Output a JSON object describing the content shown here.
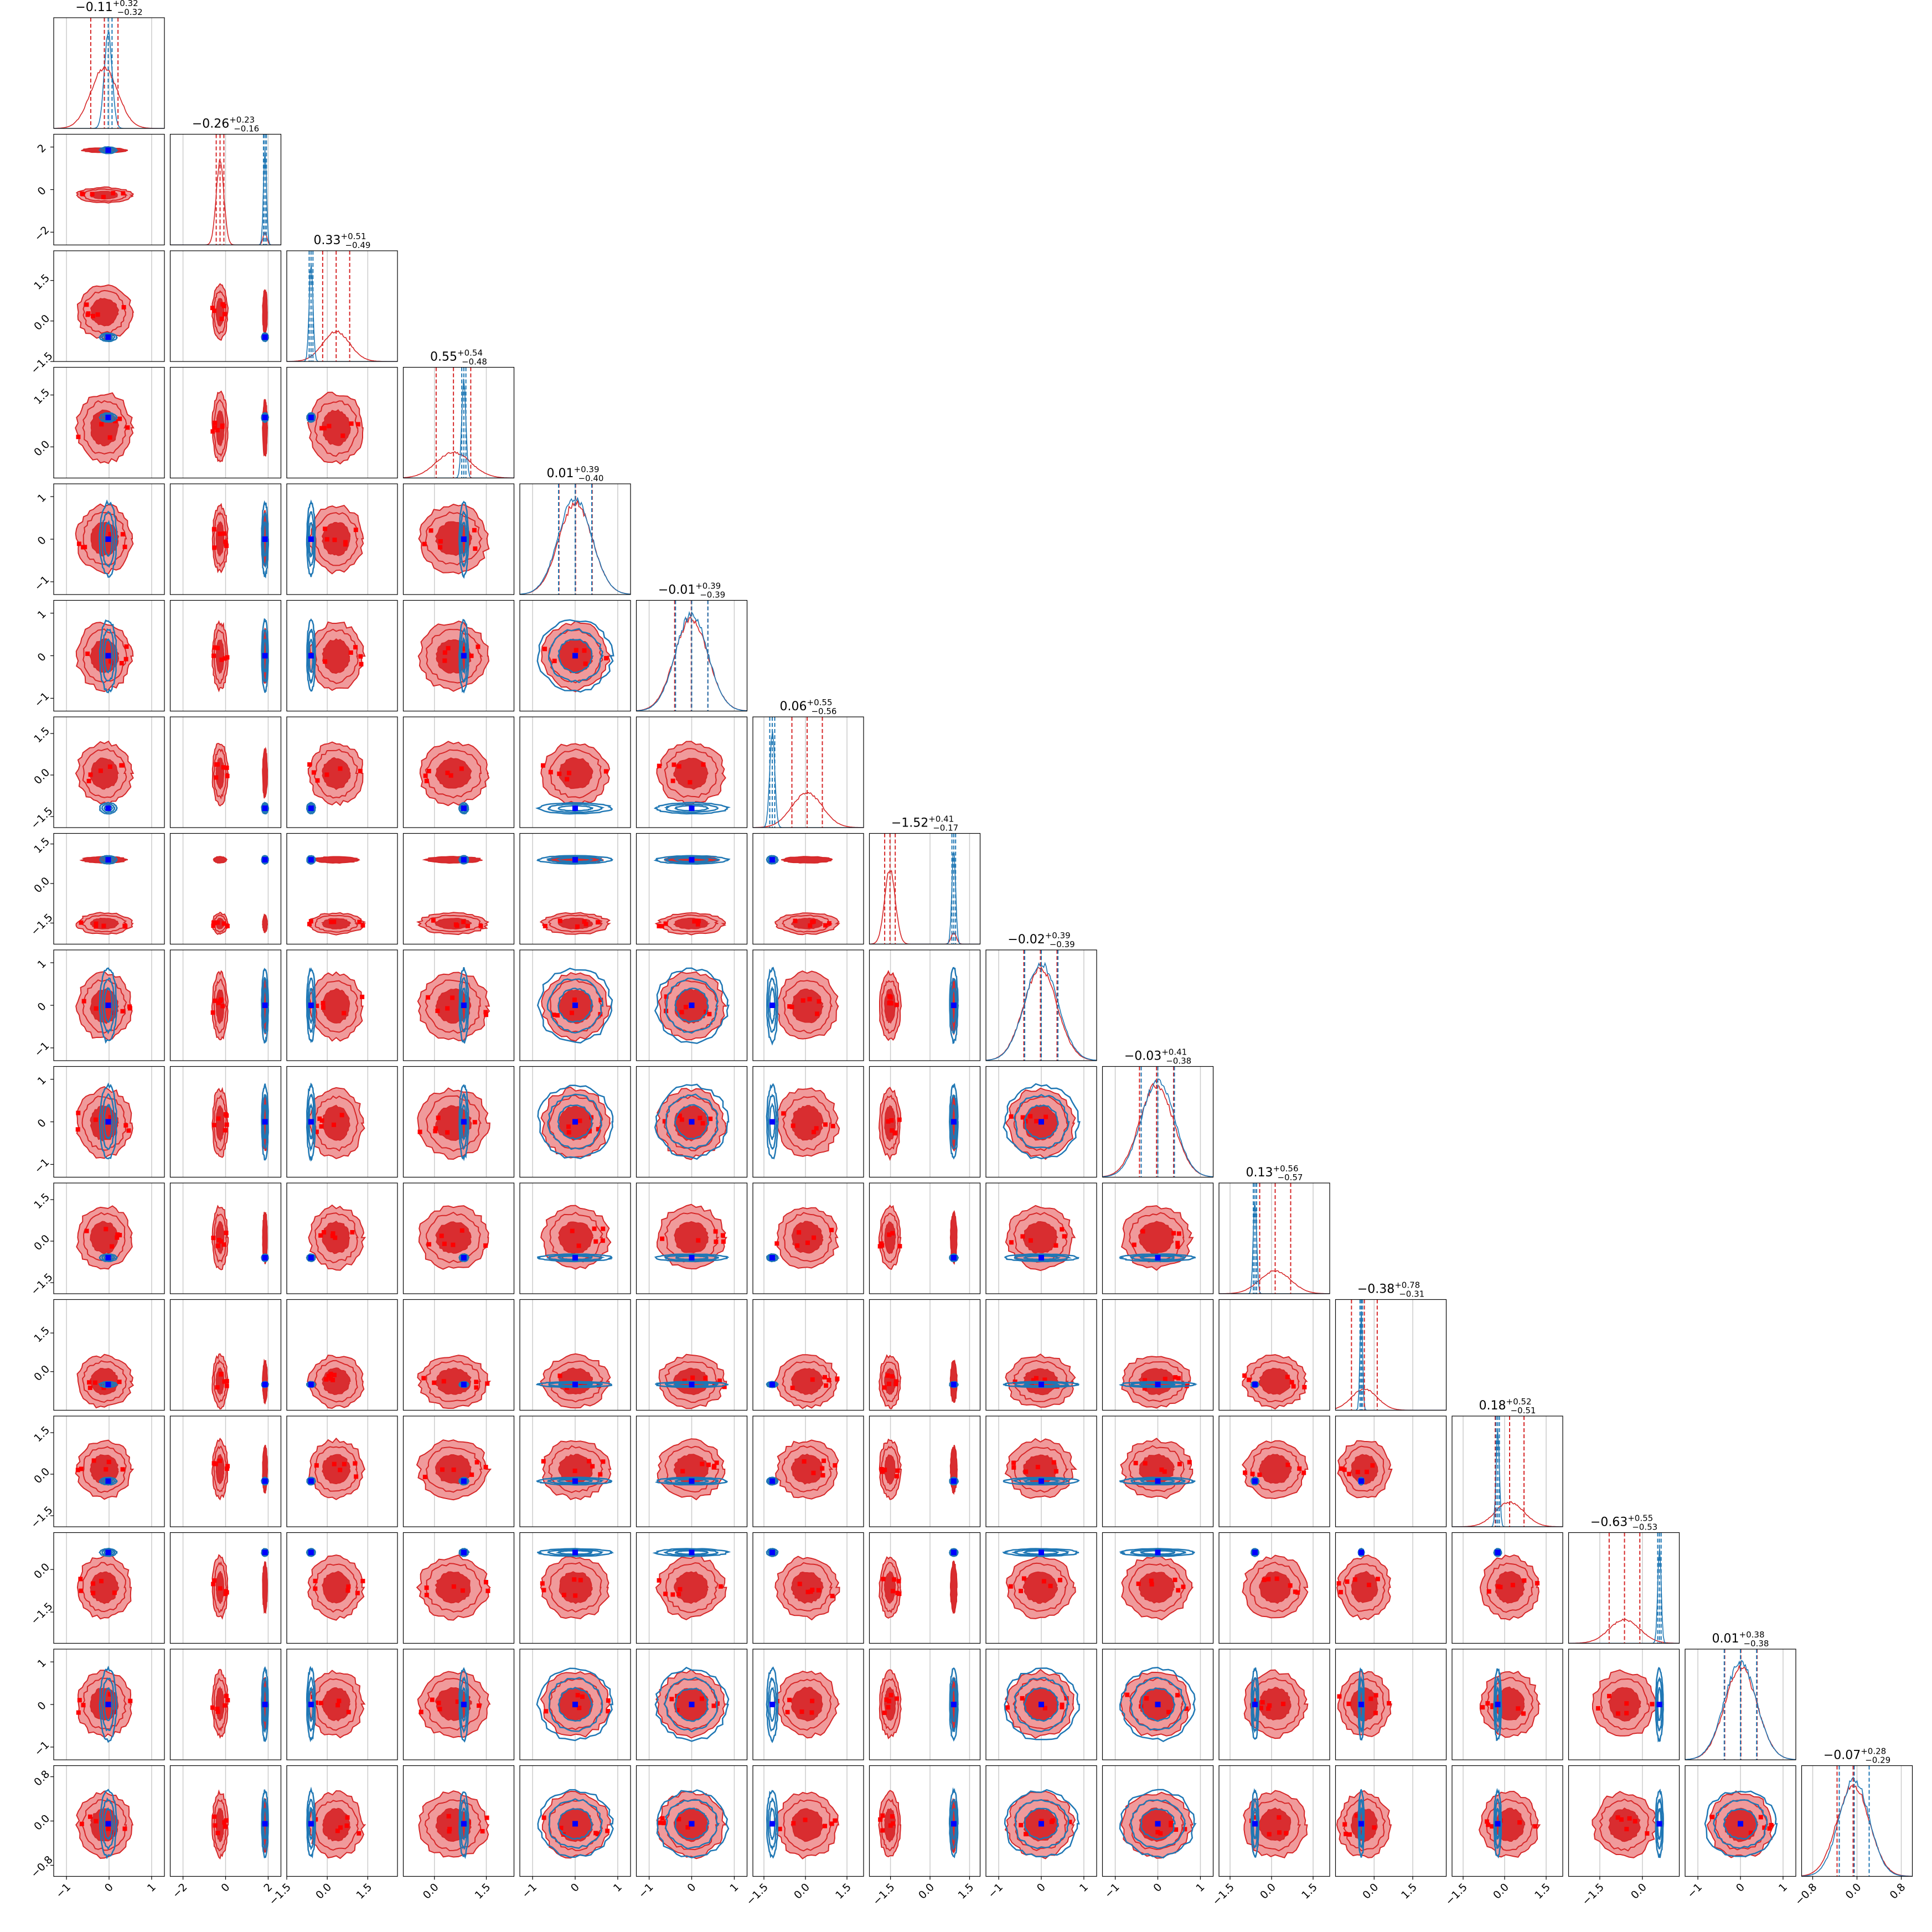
{
  "chart_data": {
    "type": "corner",
    "n_params": 16,
    "colors": {
      "red": "#d62728",
      "red_light": "#f09a9b",
      "red_dark": "#d92d30",
      "blue": "#1f77b4",
      "truth_marker": "#0000ff",
      "grid": "#cccccc"
    },
    "titles": [
      {
        "value": "−0.11",
        "plus": "+0.32",
        "minus": "−0.32"
      },
      {
        "value": "−0.26",
        "plus": "+0.23",
        "minus": "−0.16"
      },
      {
        "value": "0.33",
        "plus": "+0.51",
        "minus": "−0.49"
      },
      {
        "value": "0.55",
        "plus": "+0.54",
        "minus": "−0.48"
      },
      {
        "value": "0.01",
        "plus": "+0.39",
        "minus": "−0.40"
      },
      {
        "value": "−0.01",
        "plus": "+0.39",
        "minus": "−0.39"
      },
      {
        "value": "0.06",
        "plus": "+0.55",
        "minus": "−0.56"
      },
      {
        "value": "−1.52",
        "plus": "+0.41",
        "minus": "−0.17"
      },
      {
        "value": "−0.02",
        "plus": "+0.39",
        "minus": "−0.39"
      },
      {
        "value": "−0.03",
        "plus": "+0.41",
        "minus": "−0.38"
      },
      {
        "value": "0.13",
        "plus": "+0.56",
        "minus": "−0.57"
      },
      {
        "value": "−0.38",
        "plus": "+0.78",
        "minus": "−0.31"
      },
      {
        "value": "0.18",
        "plus": "+0.52",
        "minus": "−0.51"
      },
      {
        "value": "−0.63",
        "plus": "+0.55",
        "minus": "−0.53"
      },
      {
        "value": "0.01",
        "plus": "+0.38",
        "minus": "−0.38"
      },
      {
        "value": "−0.07",
        "plus": "+0.28",
        "minus": "−0.29"
      }
    ],
    "params": [
      {
        "range": [
          -1.3,
          1.3
        ],
        "ticks": [
          -1,
          0,
          1
        ],
        "tick_labels": [
          "−1",
          "0",
          "1"
        ],
        "red_center": -0.11,
        "red_sd": 0.32,
        "blue_center": -0.02,
        "blue_sd": 0.09
      },
      {
        "range": [
          -2.6,
          2.6
        ],
        "ticks": [
          -2,
          0,
          2
        ],
        "tick_labels": [
          "−2",
          "0",
          "2"
        ],
        "red_center": -0.26,
        "red_sd": 0.18,
        "blue_center": 1.85,
        "blue_sd": 0.07,
        "red_second_mode": 1.85
      },
      {
        "range": [
          -1.5,
          2.6
        ],
        "ticks": [
          -1.5,
          0.0,
          1.5
        ],
        "tick_labels": [
          "−1.5",
          "0.0",
          "1.5"
        ],
        "red_center": 0.33,
        "red_sd": 0.5,
        "blue_center": -0.6,
        "blue_sd": 0.07
      },
      {
        "range": [
          -0.9,
          2.3
        ],
        "ticks": [
          0.0,
          1.5
        ],
        "tick_labels": [
          "0.0",
          "1.5"
        ],
        "red_center": 0.55,
        "red_sd": 0.5,
        "blue_center": 0.85,
        "blue_sd": 0.06
      },
      {
        "range": [
          -1.3,
          1.3
        ],
        "ticks": [
          -1,
          0,
          1
        ],
        "tick_labels": [
          "−1",
          "0",
          "1"
        ],
        "red_center": 0.01,
        "red_sd": 0.39,
        "blue_center": 0.0,
        "blue_sd": 0.39
      },
      {
        "range": [
          -1.3,
          1.3
        ],
        "ticks": [
          -1,
          0,
          1
        ],
        "tick_labels": [
          "−1",
          "0",
          "1"
        ],
        "red_center": -0.01,
        "red_sd": 0.39,
        "blue_center": 0.0,
        "blue_sd": 0.38
      },
      {
        "range": [
          -1.9,
          2.1
        ],
        "ticks": [
          -1.5,
          0.0,
          1.5
        ],
        "tick_labels": [
          "−1.5",
          "0.0",
          "1.5"
        ],
        "red_center": 0.06,
        "red_sd": 0.55,
        "blue_center": -1.2,
        "blue_sd": 0.09
      },
      {
        "range": [
          -2.3,
          1.9
        ],
        "ticks": [
          -1.5,
          0.0,
          1.5
        ],
        "tick_labels": [
          "−1.5",
          "0.0",
          "1.5"
        ],
        "red_center": -1.52,
        "red_sd": 0.2,
        "blue_center": 0.9,
        "blue_sd": 0.07,
        "red_second_mode": 0.9
      },
      {
        "range": [
          -1.3,
          1.3
        ],
        "ticks": [
          -1,
          0,
          1
        ],
        "tick_labels": [
          "−1",
          "0",
          "1"
        ],
        "red_center": -0.02,
        "red_sd": 0.39,
        "blue_center": 0.0,
        "blue_sd": 0.39
      },
      {
        "range": [
          -1.3,
          1.3
        ],
        "ticks": [
          -1,
          0,
          1
        ],
        "tick_labels": [
          "−1",
          "0",
          "1"
        ],
        "red_center": -0.03,
        "red_sd": 0.4,
        "blue_center": 0.0,
        "blue_sd": 0.39
      },
      {
        "range": [
          -1.9,
          2.1
        ],
        "ticks": [
          -1.5,
          0.0,
          1.5
        ],
        "tick_labels": [
          "−1.5",
          "0.0",
          "1.5"
        ],
        "red_center": 0.13,
        "red_sd": 0.56,
        "blue_center": -0.6,
        "blue_sd": 0.06
      },
      {
        "range": [
          -1.5,
          2.8
        ],
        "ticks": [
          0.0,
          1.5
        ],
        "tick_labels": [
          "0.0",
          "1.5"
        ],
        "red_center": -0.38,
        "red_sd": 0.5,
        "blue_center": -0.5,
        "blue_sd": 0.05
      },
      {
        "range": [
          -1.9,
          2.1
        ],
        "ticks": [
          -1.5,
          0.0,
          1.5
        ],
        "tick_labels": [
          "−1.5",
          "0.0",
          "1.5"
        ],
        "red_center": 0.18,
        "red_sd": 0.52,
        "blue_center": -0.25,
        "blue_sd": 0.06
      },
      {
        "range": [
          -2.6,
          1.3
        ],
        "ticks": [
          -1.5,
          0.0
        ],
        "tick_labels": [
          "−1.5",
          "0.0"
        ],
        "red_center": -0.63,
        "red_sd": 0.54,
        "blue_center": 0.6,
        "blue_sd": 0.06
      },
      {
        "range": [
          -1.3,
          1.3
        ],
        "ticks": [
          -1,
          0,
          1
        ],
        "tick_labels": [
          "−1",
          "0",
          "1"
        ],
        "red_center": 0.01,
        "red_sd": 0.38,
        "blue_center": 0.0,
        "blue_sd": 0.38
      },
      {
        "range": [
          -1.0,
          1.0
        ],
        "ticks": [
          -0.8,
          0.0,
          0.8
        ],
        "tick_labels": [
          "−0.8",
          "0.0",
          "0.8"
        ],
        "red_center": -0.07,
        "red_sd": 0.29,
        "blue_center": -0.05,
        "blue_sd": 0.27
      }
    ]
  }
}
